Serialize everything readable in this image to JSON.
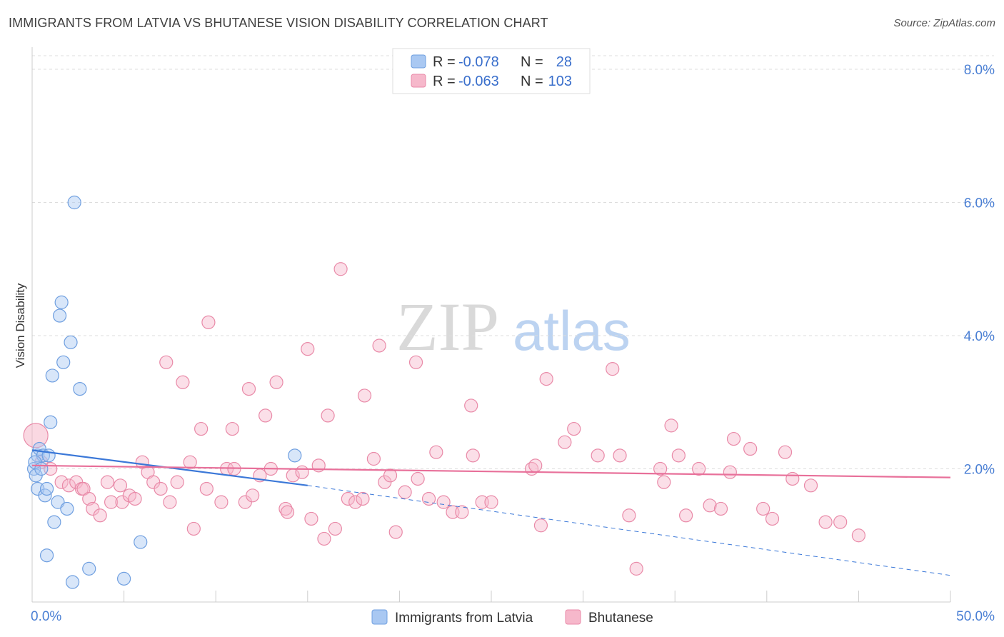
{
  "title": "IMMIGRANTS FROM LATVIA VS BHUTANESE VISION DISABILITY CORRELATION CHART",
  "source": "Source: ZipAtlas.com",
  "watermark": {
    "zip": "ZIP",
    "atlas": "atlas"
  },
  "colors": {
    "blue_fill": "#a9c8f2",
    "blue_stroke": "#6f9fe0",
    "blue_line": "#3b78d8",
    "pink_fill": "#f6b8cb",
    "pink_stroke": "#e98aa8",
    "pink_line": "#e8709a",
    "tick_label": "#4a7fd4",
    "grid": "#dddddd"
  },
  "legend": {
    "rows": [
      {
        "r_label": "R =",
        "r_value": "-0.078",
        "n_label": "N =",
        "n_value": "28"
      },
      {
        "r_label": "R =",
        "r_value": "-0.063",
        "n_label": "N =",
        "n_value": "103"
      }
    ]
  },
  "bottom_legend": [
    "Immigrants from Latvia",
    "Bhutanese"
  ],
  "chart_data": {
    "type": "scatter",
    "title": "IMMIGRANTS FROM LATVIA VS BHUTANESE VISION DISABILITY CORRELATION CHART",
    "xlabel": "",
    "ylabel": "Vision Disability",
    "xlim": [
      0,
      50
    ],
    "ylim": [
      0,
      8.4
    ],
    "x_tick_labels": {
      "0": "0.0%",
      "50": "50.0%"
    },
    "y_ticks": [
      2,
      4,
      6,
      8
    ],
    "y_tick_labels": [
      "2.0%",
      "4.0%",
      "6.0%",
      "8.0%"
    ],
    "x_minor_ticks": [
      0,
      5,
      10,
      15,
      20,
      25,
      30,
      35,
      40,
      45,
      50
    ],
    "series": [
      {
        "name": "Immigrants from Latvia",
        "color": "blue",
        "points": [
          {
            "x": 0.1,
            "y": 2.0
          },
          {
            "x": 0.2,
            "y": 1.9
          },
          {
            "x": 0.3,
            "y": 2.2
          },
          {
            "x": 0.4,
            "y": 2.3
          },
          {
            "x": 0.3,
            "y": 1.7
          },
          {
            "x": 0.6,
            "y": 2.2
          },
          {
            "x": 0.7,
            "y": 1.6
          },
          {
            "x": 0.8,
            "y": 1.7
          },
          {
            "x": 0.9,
            "y": 2.2
          },
          {
            "x": 1.0,
            "y": 2.7
          },
          {
            "x": 1.1,
            "y": 3.4
          },
          {
            "x": 1.2,
            "y": 1.2
          },
          {
            "x": 0.8,
            "y": 0.7
          },
          {
            "x": 1.4,
            "y": 1.5
          },
          {
            "x": 1.5,
            "y": 4.3
          },
          {
            "x": 1.6,
            "y": 4.5
          },
          {
            "x": 1.7,
            "y": 3.6
          },
          {
            "x": 1.9,
            "y": 1.4
          },
          {
            "x": 2.1,
            "y": 3.9
          },
          {
            "x": 2.3,
            "y": 6.0
          },
          {
            "x": 2.6,
            "y": 3.2
          },
          {
            "x": 2.2,
            "y": 0.3
          },
          {
            "x": 3.1,
            "y": 0.5
          },
          {
            "x": 5.9,
            "y": 0.9
          },
          {
            "x": 5.0,
            "y": 0.35
          },
          {
            "x": 14.3,
            "y": 2.2
          },
          {
            "x": 0.15,
            "y": 2.1
          },
          {
            "x": 0.5,
            "y": 2.0
          }
        ],
        "trend": {
          "x0": 0,
          "y0": 2.28,
          "x1": 15,
          "y1": 1.75,
          "dash_x1": 50,
          "dash_y1": 0.4
        }
      },
      {
        "name": "Bhutanese",
        "color": "pink",
        "points": [
          {
            "x": 0.2,
            "y": 2.5
          },
          {
            "x": 0.5,
            "y": 2.1
          },
          {
            "x": 1.0,
            "y": 2.0
          },
          {
            "x": 1.6,
            "y": 1.8
          },
          {
            "x": 2.0,
            "y": 1.75
          },
          {
            "x": 2.4,
            "y": 1.8
          },
          {
            "x": 2.7,
            "y": 1.7
          },
          {
            "x": 2.8,
            "y": 1.7
          },
          {
            "x": 3.1,
            "y": 1.55
          },
          {
            "x": 3.3,
            "y": 1.4
          },
          {
            "x": 3.7,
            "y": 1.3
          },
          {
            "x": 4.1,
            "y": 1.8
          },
          {
            "x": 4.3,
            "y": 1.5
          },
          {
            "x": 4.8,
            "y": 1.75
          },
          {
            "x": 4.9,
            "y": 1.5
          },
          {
            "x": 5.3,
            "y": 1.6
          },
          {
            "x": 5.6,
            "y": 1.55
          },
          {
            "x": 6.0,
            "y": 2.1
          },
          {
            "x": 6.3,
            "y": 1.95
          },
          {
            "x": 6.6,
            "y": 1.8
          },
          {
            "x": 7.0,
            "y": 1.7
          },
          {
            "x": 7.3,
            "y": 3.6
          },
          {
            "x": 7.5,
            "y": 1.5
          },
          {
            "x": 7.9,
            "y": 1.8
          },
          {
            "x": 8.2,
            "y": 3.3
          },
          {
            "x": 8.6,
            "y": 2.1
          },
          {
            "x": 8.8,
            "y": 1.1
          },
          {
            "x": 9.2,
            "y": 2.6
          },
          {
            "x": 9.5,
            "y": 1.7
          },
          {
            "x": 9.6,
            "y": 4.2
          },
          {
            "x": 10.3,
            "y": 1.5
          },
          {
            "x": 10.6,
            "y": 2.0
          },
          {
            "x": 10.9,
            "y": 2.6
          },
          {
            "x": 11.0,
            "y": 2.0
          },
          {
            "x": 11.6,
            "y": 1.5
          },
          {
            "x": 11.8,
            "y": 3.2
          },
          {
            "x": 12.0,
            "y": 1.6
          },
          {
            "x": 12.4,
            "y": 1.9
          },
          {
            "x": 12.7,
            "y": 2.8
          },
          {
            "x": 13.0,
            "y": 2.0
          },
          {
            "x": 13.3,
            "y": 3.3
          },
          {
            "x": 13.8,
            "y": 1.4
          },
          {
            "x": 13.9,
            "y": 1.35
          },
          {
            "x": 14.2,
            "y": 1.9
          },
          {
            "x": 14.7,
            "y": 1.95
          },
          {
            "x": 15.0,
            "y": 3.8
          },
          {
            "x": 15.2,
            "y": 1.25
          },
          {
            "x": 15.6,
            "y": 2.05
          },
          {
            "x": 15.9,
            "y": 0.95
          },
          {
            "x": 16.1,
            "y": 2.8
          },
          {
            "x": 16.5,
            "y": 1.1
          },
          {
            "x": 16.8,
            "y": 5.0
          },
          {
            "x": 17.2,
            "y": 1.55
          },
          {
            "x": 17.6,
            "y": 1.5
          },
          {
            "x": 18.0,
            "y": 1.55
          },
          {
            "x": 18.1,
            "y": 3.1
          },
          {
            "x": 18.6,
            "y": 2.15
          },
          {
            "x": 18.9,
            "y": 3.85
          },
          {
            "x": 19.2,
            "y": 1.8
          },
          {
            "x": 19.5,
            "y": 1.9
          },
          {
            "x": 19.8,
            "y": 1.05
          },
          {
            "x": 20.3,
            "y": 1.65
          },
          {
            "x": 20.9,
            "y": 3.6
          },
          {
            "x": 21.0,
            "y": 1.85
          },
          {
            "x": 21.6,
            "y": 1.55
          },
          {
            "x": 22.0,
            "y": 2.25
          },
          {
            "x": 22.4,
            "y": 1.5
          },
          {
            "x": 22.9,
            "y": 1.35
          },
          {
            "x": 23.4,
            "y": 1.35
          },
          {
            "x": 23.9,
            "y": 2.95
          },
          {
            "x": 24.0,
            "y": 2.2
          },
          {
            "x": 24.5,
            "y": 1.5
          },
          {
            "x": 25.0,
            "y": 1.5
          },
          {
            "x": 27.2,
            "y": 2.0
          },
          {
            "x": 27.4,
            "y": 2.05
          },
          {
            "x": 27.7,
            "y": 1.15
          },
          {
            "x": 28.0,
            "y": 3.35
          },
          {
            "x": 29.0,
            "y": 2.4
          },
          {
            "x": 29.5,
            "y": 2.6
          },
          {
            "x": 30.8,
            "y": 2.2
          },
          {
            "x": 31.6,
            "y": 3.5
          },
          {
            "x": 32.0,
            "y": 2.2
          },
          {
            "x": 32.5,
            "y": 1.3
          },
          {
            "x": 32.9,
            "y": 0.5
          },
          {
            "x": 34.2,
            "y": 2.0
          },
          {
            "x": 34.4,
            "y": 1.8
          },
          {
            "x": 34.8,
            "y": 2.65
          },
          {
            "x": 35.2,
            "y": 2.2
          },
          {
            "x": 35.6,
            "y": 1.3
          },
          {
            "x": 36.3,
            "y": 2.0
          },
          {
            "x": 36.9,
            "y": 1.45
          },
          {
            "x": 37.5,
            "y": 1.4
          },
          {
            "x": 38.0,
            "y": 1.95
          },
          {
            "x": 38.2,
            "y": 2.45
          },
          {
            "x": 39.1,
            "y": 2.3
          },
          {
            "x": 39.8,
            "y": 1.4
          },
          {
            "x": 40.3,
            "y": 1.25
          },
          {
            "x": 41.0,
            "y": 2.25
          },
          {
            "x": 41.4,
            "y": 1.85
          },
          {
            "x": 42.4,
            "y": 1.75
          },
          {
            "x": 43.2,
            "y": 1.2
          },
          {
            "x": 45.0,
            "y": 1.0
          },
          {
            "x": 44.0,
            "y": 1.2
          }
        ],
        "trend": {
          "x0": 0,
          "y0": 2.05,
          "x1": 50,
          "y1": 1.87
        }
      }
    ]
  }
}
